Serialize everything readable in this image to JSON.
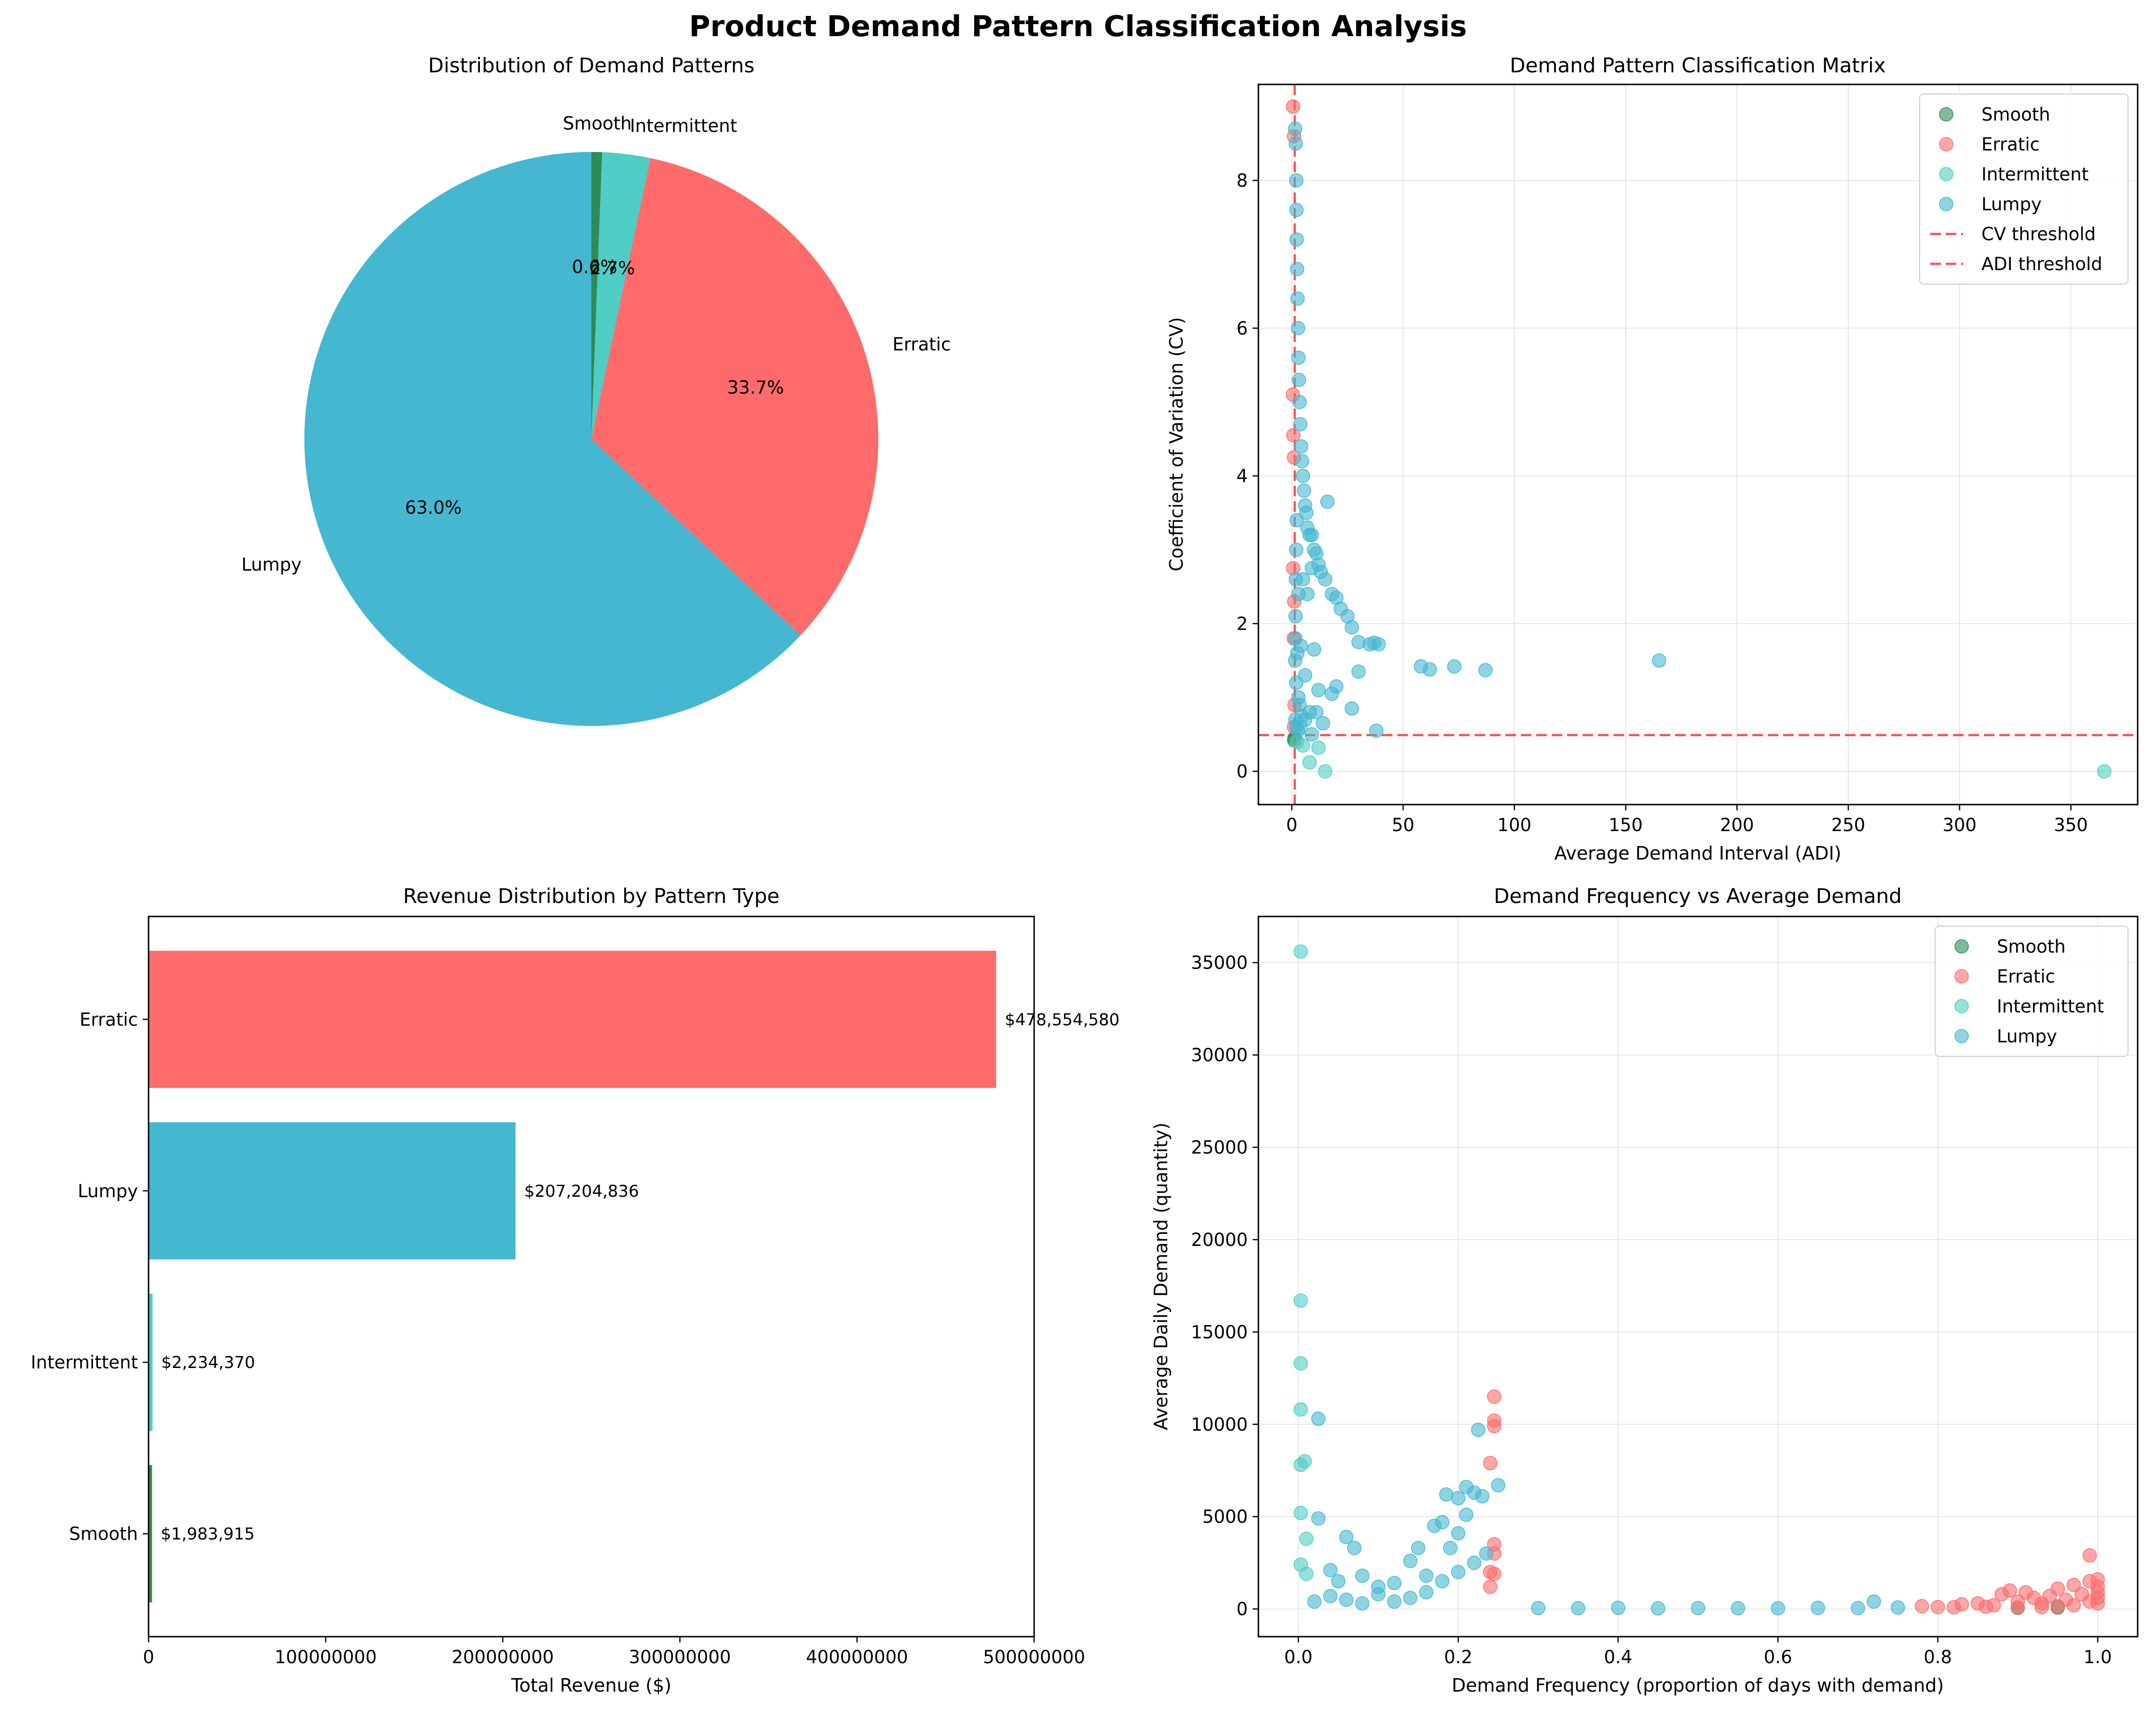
{
  "figure_title": "Product Demand Pattern Classification Analysis",
  "colors": {
    "Smooth": "#2e8b57",
    "Erratic": "#ff6b6b",
    "Intermittent": "#4ecdc4",
    "Lumpy": "#45b7d1",
    "threshold": "#ff0000"
  },
  "chart_data": [
    {
      "type": "pie",
      "title": "Distribution of Demand Patterns",
      "labels": [
        "Lumpy",
        "Erratic",
        "Intermittent",
        "Smooth"
      ],
      "values": [
        63.0,
        33.7,
        2.7,
        0.6
      ],
      "value_labels": [
        "63.0%",
        "33.7%",
        "2.7%",
        "0.6%"
      ]
    },
    {
      "type": "scatter",
      "title": "Demand Pattern Classification Matrix",
      "xlabel": "Average Demand Interval (ADI)",
      "ylabel": "Coefficient of Variation (CV)",
      "xlim": [
        -15,
        380
      ],
      "ylim": [
        -0.45,
        9.3
      ],
      "xticks": [
        0,
        50,
        100,
        150,
        200,
        250,
        300,
        350
      ],
      "yticks": [
        0,
        2,
        4,
        6,
        8
      ],
      "grid": true,
      "legend": "upper right",
      "legend_entries": [
        "Smooth",
        "Erratic",
        "Intermittent",
        "Lumpy",
        "CV threshold",
        "ADI threshold"
      ],
      "thresholds": {
        "cv": 0.49,
        "adi": 1.32
      },
      "series": [
        {
          "name": "Smooth",
          "points": [
            [
              1.1,
              0.42
            ],
            [
              1.2,
              0.45
            ]
          ]
        },
        {
          "name": "Erratic",
          "points": [
            [
              0.6,
              9.0
            ],
            [
              1.0,
              8.6
            ],
            [
              0.5,
              5.1
            ],
            [
              0.7,
              4.55
            ],
            [
              1.0,
              4.25
            ],
            [
              0.6,
              2.75
            ],
            [
              1.1,
              2.3
            ],
            [
              0.9,
              1.8
            ],
            [
              1.2,
              0.9
            ],
            [
              1.0,
              0.6
            ]
          ]
        },
        {
          "name": "Intermittent",
          "points": [
            [
              2.5,
              0.4
            ],
            [
              5,
              0.35
            ],
            [
              8,
              0.12
            ],
            [
              12,
              0.32
            ],
            [
              15,
              0.0
            ],
            [
              365,
              0.0
            ],
            [
              4,
              0.6
            ]
          ]
        },
        {
          "name": "Lumpy",
          "points": [
            [
              1.5,
              8.7
            ],
            [
              1.8,
              8.5
            ],
            [
              2.0,
              8.0
            ],
            [
              2.1,
              7.6
            ],
            [
              2.2,
              7.2
            ],
            [
              2.4,
              6.8
            ],
            [
              2.6,
              6.4
            ],
            [
              2.8,
              6.0
            ],
            [
              3.0,
              5.6
            ],
            [
              3.2,
              5.3
            ],
            [
              3.5,
              5.0
            ],
            [
              3.8,
              4.7
            ],
            [
              4.2,
              4.4
            ],
            [
              4.6,
              4.2
            ],
            [
              5.0,
              4.0
            ],
            [
              5.5,
              3.8
            ],
            [
              6.0,
              3.6
            ],
            [
              6.5,
              3.5
            ],
            [
              7.0,
              3.3
            ],
            [
              8.0,
              3.2
            ],
            [
              9.0,
              3.2
            ],
            [
              10.0,
              3.0
            ],
            [
              11.0,
              2.95
            ],
            [
              12.0,
              2.8
            ],
            [
              13.0,
              2.7
            ],
            [
              15.0,
              2.6
            ],
            [
              16.0,
              3.65
            ],
            [
              18.0,
              2.4
            ],
            [
              20.0,
              2.35
            ],
            [
              22.0,
              2.2
            ],
            [
              25.0,
              2.1
            ],
            [
              27.0,
              1.95
            ],
            [
              30.0,
              1.75
            ],
            [
              35.0,
              1.72
            ],
            [
              37.0,
              1.74
            ],
            [
              39.0,
              1.72
            ],
            [
              58.0,
              1.42
            ],
            [
              62.0,
              1.38
            ],
            [
              73.0,
              1.42
            ],
            [
              87.0,
              1.37
            ],
            [
              165.0,
              1.5
            ],
            [
              3.0,
              2.4
            ],
            [
              5.0,
              2.6
            ],
            [
              7.0,
              2.4
            ],
            [
              9.0,
              2.75
            ],
            [
              10.0,
              1.65
            ],
            [
              12.0,
              1.1
            ],
            [
              14.0,
              0.65
            ],
            [
              18.0,
              1.05
            ],
            [
              20.0,
              1.15
            ],
            [
              27.0,
              0.85
            ],
            [
              30.0,
              1.35
            ],
            [
              38.0,
              0.55
            ],
            [
              4.0,
              1.7
            ],
            [
              6.0,
              1.3
            ],
            [
              8.0,
              0.8
            ],
            [
              2.0,
              1.2
            ],
            [
              3.0,
              1.0
            ],
            [
              1.6,
              1.8
            ],
            [
              1.7,
              2.1
            ],
            [
              1.8,
              2.6
            ],
            [
              2.0,
              3.0
            ],
            [
              2.2,
              3.4
            ],
            [
              1.5,
              1.5
            ],
            [
              2.5,
              1.6
            ],
            [
              3.5,
              0.9
            ],
            [
              4.5,
              0.75
            ],
            [
              6.0,
              0.7
            ],
            [
              9.0,
              0.5
            ],
            [
              11.0,
              0.8
            ],
            [
              1.6,
              0.7
            ],
            [
              2.0,
              0.6
            ],
            [
              2.8,
              0.55
            ]
          ]
        }
      ]
    },
    {
      "type": "bar",
      "orientation": "horizontal",
      "title": "Revenue Distribution by Pattern Type",
      "xlabel": "Total Revenue ($)",
      "xlim": [
        0,
        500000000
      ],
      "xticks": [
        0,
        100000000,
        200000000,
        300000000,
        400000000,
        500000000
      ],
      "xtick_labels": [
        "0",
        "100000000",
        "200000000",
        "300000000",
        "400000000",
        "500000000"
      ],
      "categories": [
        "Erratic",
        "Lumpy",
        "Intermittent",
        "Smooth"
      ],
      "values": [
        478554580,
        207204836,
        2234370,
        1983915
      ],
      "value_labels": [
        "$478,554,580",
        "$207,204,836",
        "$2,234,370",
        "$1,983,915"
      ]
    },
    {
      "type": "scatter",
      "title": "Demand Frequency vs Average Demand",
      "xlabel": "Demand Frequency (proportion of days with demand)",
      "ylabel": "Average Daily Demand (quantity)",
      "xlim": [
        -0.05,
        1.05
      ],
      "ylim": [
        -1500,
        37500
      ],
      "xticks": [
        0.0,
        0.2,
        0.4,
        0.6,
        0.8,
        1.0
      ],
      "yticks": [
        0,
        5000,
        10000,
        15000,
        20000,
        25000,
        30000,
        35000
      ],
      "grid": true,
      "legend": "upper right",
      "legend_entries": [
        "Smooth",
        "Erratic",
        "Intermittent",
        "Lumpy"
      ],
      "series": [
        {
          "name": "Smooth",
          "points": [
            [
              0.9,
              60
            ],
            [
              0.95,
              80
            ]
          ]
        },
        {
          "name": "Erratic",
          "points": [
            [
              0.245,
              11500
            ],
            [
              0.245,
              10200
            ],
            [
              0.245,
              9900
            ],
            [
              0.24,
              7900
            ],
            [
              0.245,
              3500
            ],
            [
              0.245,
              3000
            ],
            [
              0.24,
              2000
            ],
            [
              0.245,
              1900
            ],
            [
              0.24,
              1200
            ],
            [
              0.78,
              150
            ],
            [
              0.8,
              100
            ],
            [
              0.83,
              250
            ],
            [
              0.85,
              300
            ],
            [
              0.87,
              200
            ],
            [
              0.88,
              800
            ],
            [
              0.89,
              1000
            ],
            [
              0.9,
              400
            ],
            [
              0.91,
              900
            ],
            [
              0.92,
              600
            ],
            [
              0.93,
              300
            ],
            [
              0.94,
              700
            ],
            [
              0.95,
              1100
            ],
            [
              0.96,
              500
            ],
            [
              0.97,
              1300
            ],
            [
              0.98,
              800
            ],
            [
              0.99,
              2900
            ],
            [
              0.99,
              1500
            ],
            [
              1.0,
              1600
            ],
            [
              1.0,
              1200
            ],
            [
              1.0,
              900
            ],
            [
              1.0,
              600
            ],
            [
              1.0,
              300
            ],
            [
              0.99,
              400
            ],
            [
              0.97,
              200
            ],
            [
              0.95,
              150
            ],
            [
              0.93,
              100
            ],
            [
              0.9,
              80
            ],
            [
              0.86,
              120
            ],
            [
              0.82,
              90
            ]
          ]
        },
        {
          "name": "Intermittent",
          "points": [
            [
              0.003,
              35600
            ],
            [
              0.003,
              16700
            ],
            [
              0.003,
              13300
            ],
            [
              0.003,
              10800
            ],
            [
              0.003,
              7800
            ],
            [
              0.008,
              8000
            ],
            [
              0.003,
              5200
            ],
            [
              0.003,
              2400
            ],
            [
              0.01,
              1900
            ],
            [
              0.01,
              3800
            ]
          ]
        },
        {
          "name": "Lumpy",
          "points": [
            [
              0.025,
              10300
            ],
            [
              0.025,
              4900
            ],
            [
              0.04,
              2100
            ],
            [
              0.05,
              1500
            ],
            [
              0.06,
              3900
            ],
            [
              0.07,
              3300
            ],
            [
              0.08,
              1800
            ],
            [
              0.1,
              1200
            ],
            [
              0.12,
              1400
            ],
            [
              0.14,
              2600
            ],
            [
              0.15,
              3300
            ],
            [
              0.16,
              1800
            ],
            [
              0.17,
              4500
            ],
            [
              0.18,
              4700
            ],
            [
              0.185,
              6200
            ],
            [
              0.19,
              3300
            ],
            [
              0.2,
              6000
            ],
            [
              0.2,
              4100
            ],
            [
              0.21,
              5100
            ],
            [
              0.21,
              6600
            ],
            [
              0.22,
              6300
            ],
            [
              0.225,
              9700
            ],
            [
              0.23,
              6100
            ],
            [
              0.235,
              3000
            ],
            [
              0.25,
              6700
            ],
            [
              0.22,
              2500
            ],
            [
              0.2,
              2000
            ],
            [
              0.18,
              1500
            ],
            [
              0.16,
              900
            ],
            [
              0.14,
              600
            ],
            [
              0.12,
              400
            ],
            [
              0.1,
              800
            ],
            [
              0.08,
              300
            ],
            [
              0.06,
              500
            ],
            [
              0.04,
              700
            ],
            [
              0.02,
              400
            ],
            [
              0.3,
              50
            ],
            [
              0.35,
              40
            ],
            [
              0.4,
              60
            ],
            [
              0.45,
              30
            ],
            [
              0.5,
              50
            ],
            [
              0.55,
              40
            ],
            [
              0.6,
              35
            ],
            [
              0.65,
              60
            ],
            [
              0.7,
              45
            ],
            [
              0.72,
              400
            ],
            [
              0.75,
              80
            ]
          ]
        }
      ]
    }
  ]
}
